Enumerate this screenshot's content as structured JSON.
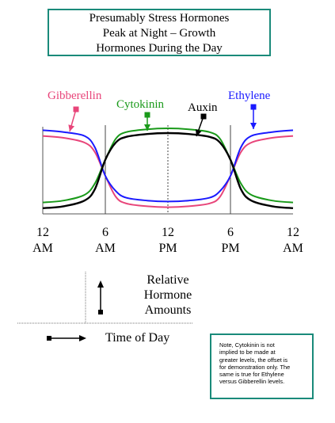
{
  "chart_data": {
    "type": "line",
    "title": [
      "Presumably Stress Hormones",
      "Peak at Night – Growth",
      "Hormones During the Day"
    ],
    "x_ticks": [
      {
        "top": "12",
        "bottom": "AM"
      },
      {
        "top": "6",
        "bottom": "AM"
      },
      {
        "top": "12",
        "bottom": "PM"
      },
      {
        "top": "6",
        "bottom": "PM"
      },
      {
        "top": "12",
        "bottom": "AM"
      }
    ],
    "x_range_hours": [
      0,
      24
    ],
    "y_range": [
      0,
      1
    ],
    "grid_x_hours": [
      6,
      12,
      18
    ],
    "series": [
      {
        "name": "Gibberellin",
        "color": "#e8457a",
        "x": [
          0,
          2,
          4,
          5,
          6,
          7,
          8,
          10,
          12,
          14,
          16,
          17,
          18,
          19,
          20,
          22,
          24
        ],
        "y": [
          0.82,
          0.8,
          0.75,
          0.65,
          0.4,
          0.18,
          0.11,
          0.08,
          0.07,
          0.08,
          0.11,
          0.18,
          0.4,
          0.65,
          0.75,
          0.8,
          0.82
        ]
      },
      {
        "name": "Ethylene",
        "color": "#1a1aff",
        "x": [
          0,
          2,
          4,
          5,
          6,
          7,
          8,
          10,
          12,
          14,
          16,
          17,
          18,
          19,
          20,
          22,
          24
        ],
        "y": [
          0.88,
          0.86,
          0.82,
          0.7,
          0.4,
          0.24,
          0.17,
          0.14,
          0.13,
          0.14,
          0.17,
          0.24,
          0.4,
          0.7,
          0.82,
          0.86,
          0.88
        ]
      },
      {
        "name": "Cytokinin",
        "color": "#1a9a1a",
        "x": [
          0,
          2,
          4,
          5,
          6,
          7,
          8,
          10,
          12,
          14,
          16,
          17,
          18,
          19,
          20,
          22,
          24
        ],
        "y": [
          0.12,
          0.14,
          0.2,
          0.32,
          0.57,
          0.79,
          0.86,
          0.89,
          0.9,
          0.89,
          0.86,
          0.79,
          0.57,
          0.32,
          0.2,
          0.14,
          0.12
        ]
      },
      {
        "name": "Auxin",
        "color": "#000000",
        "x": [
          0,
          2,
          4,
          5,
          6,
          7,
          8,
          10,
          12,
          14,
          16,
          17,
          18,
          19,
          20,
          22,
          24
        ],
        "y": [
          0.06,
          0.08,
          0.14,
          0.26,
          0.57,
          0.75,
          0.81,
          0.84,
          0.85,
          0.84,
          0.81,
          0.75,
          0.57,
          0.26,
          0.14,
          0.08,
          0.06
        ]
      }
    ],
    "series_labels": [
      {
        "name": "Gibberellin",
        "color": "#e8457a",
        "arrow": "down-left"
      },
      {
        "name": "Cytokinin",
        "color": "#1a9a1a",
        "arrow": "down"
      },
      {
        "name": "Auxin",
        "color": "#000000",
        "arrow": "down-left"
      },
      {
        "name": "Ethylene",
        "color": "#1a1aff",
        "arrow": "down"
      }
    ],
    "legend": {
      "y_axis_label": [
        "Relative",
        "Hormone",
        "Amounts"
      ],
      "x_axis_label": "Time of Day"
    }
  },
  "note": [
    "Note, Cytokinin is not",
    "implied to be made at",
    "greater levels, the offset is",
    "for demonstration only.  The",
    "same is true for Ethylene",
    "versus Gibberellin levels."
  ]
}
